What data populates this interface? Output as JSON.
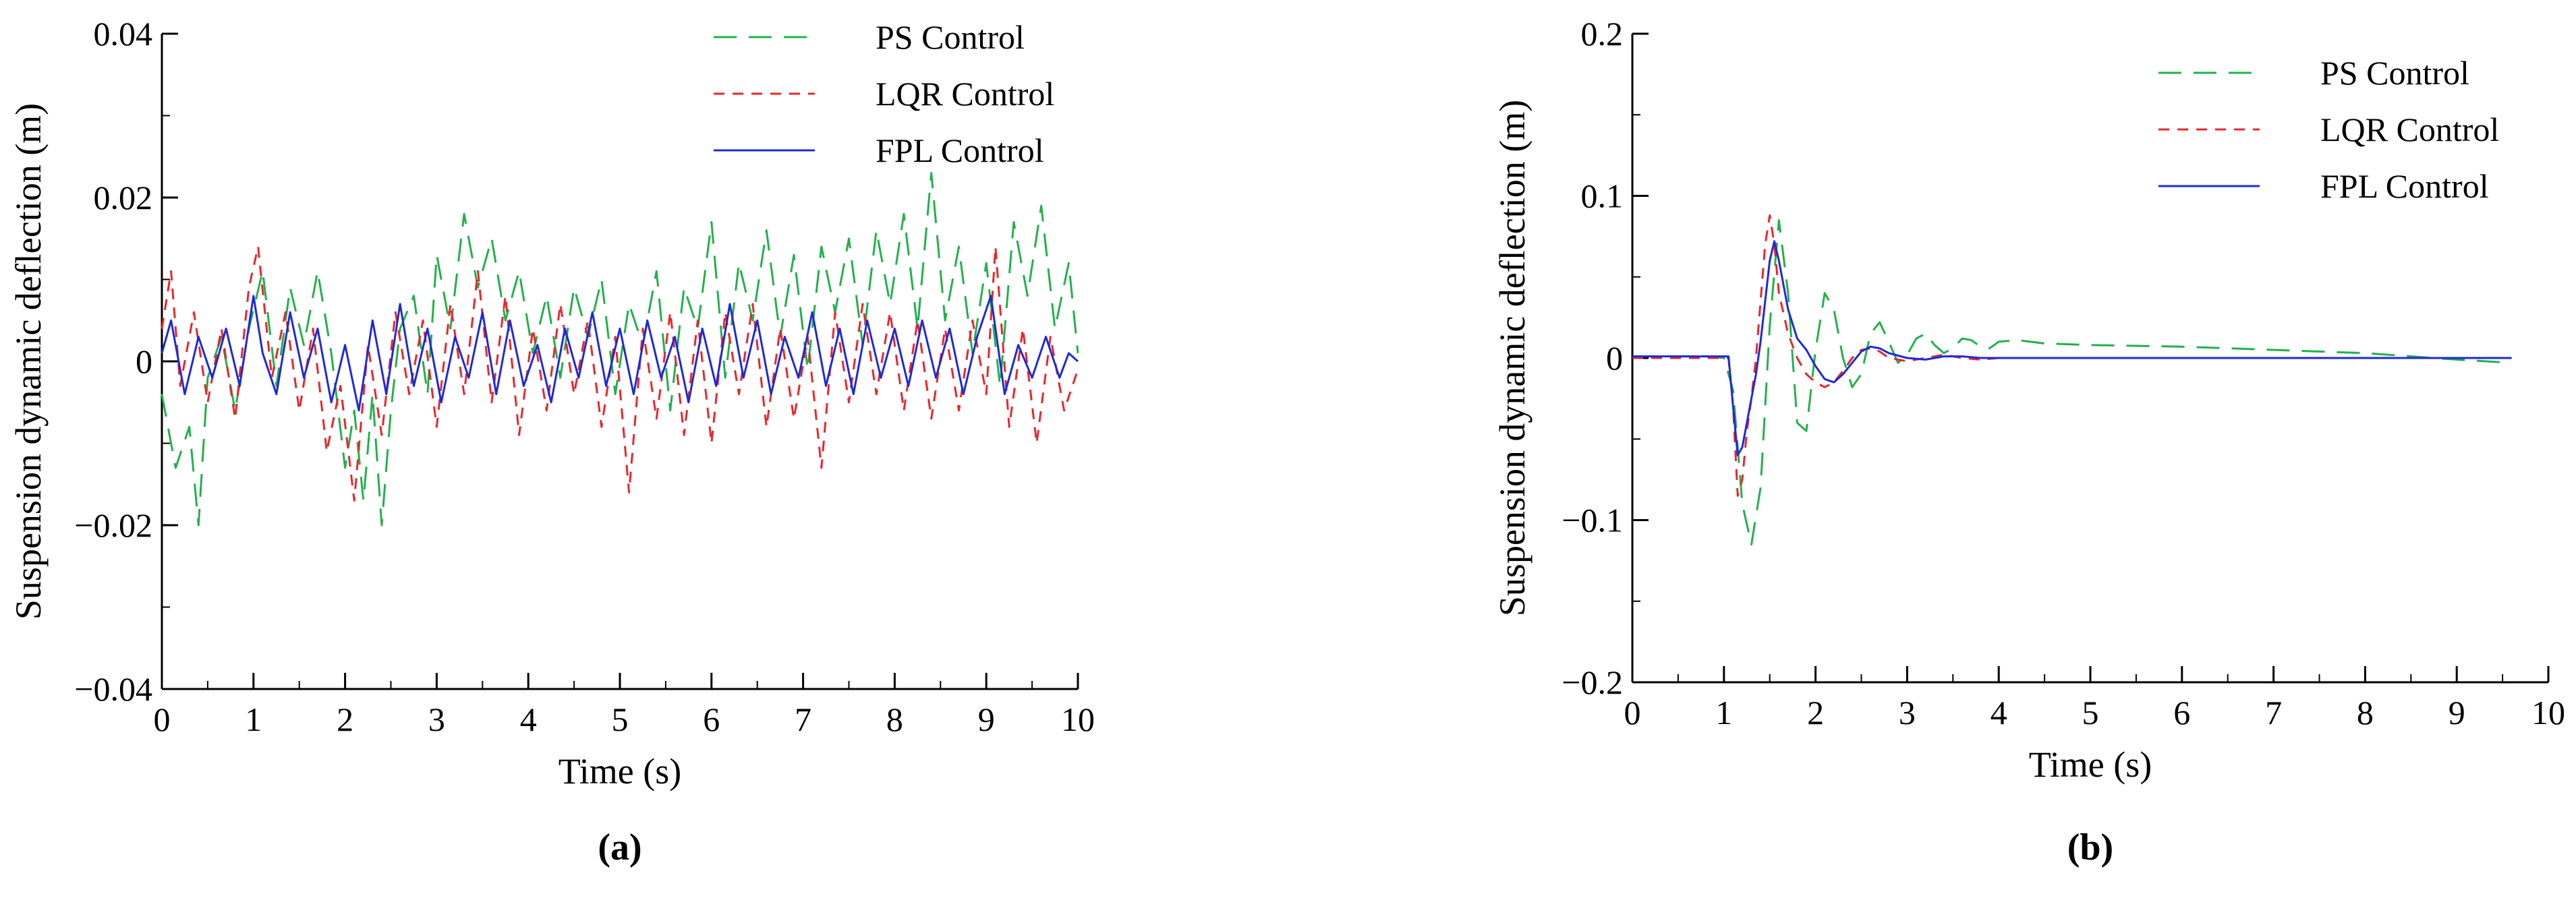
{
  "figure": {
    "panel_labels": [
      "(a)",
      "(b)"
    ]
  },
  "colors": {
    "ps": "#22b14c",
    "lqr": "#e8272d",
    "fpl": "#1f2ad6",
    "axis": "#000000"
  },
  "chart_data": [
    {
      "id": "a",
      "type": "line",
      "title": "",
      "panel_label": "(a)",
      "xlabel": "Time (s)",
      "ylabel": "Suspension dynamic deflection (m)",
      "xlim": [
        0,
        10
      ],
      "ylim": [
        -0.04,
        0.04
      ],
      "xticks": [
        0,
        1,
        2,
        3,
        4,
        5,
        6,
        7,
        8,
        9,
        10
      ],
      "xtick_labels": [
        "0",
        "1",
        "2",
        "3",
        "4",
        "5",
        "6",
        "7",
        "8",
        "9",
        "10"
      ],
      "yticks": [
        -0.04,
        -0.02,
        0,
        0.02,
        0.04
      ],
      "ytick_labels": [
        "−0.04",
        "−0.02",
        "0",
        "0.02",
        "0.04"
      ],
      "legend_position": "top-right",
      "legend": [
        "PS Control",
        "LQR Control",
        "FPL Control"
      ],
      "series": [
        {
          "name": "PS Control",
          "style": "long-dash",
          "color": "#22b14c",
          "x": [
            0,
            0.15,
            0.3,
            0.4,
            0.5,
            0.65,
            0.8,
            0.95,
            1.1,
            1.25,
            1.4,
            1.55,
            1.7,
            1.85,
            2.0,
            2.1,
            2.2,
            2.3,
            2.4,
            2.5,
            2.6,
            2.75,
            2.9,
            3.0,
            3.15,
            3.3,
            3.45,
            3.6,
            3.75,
            3.9,
            4.05,
            4.2,
            4.35,
            4.5,
            4.65,
            4.8,
            4.95,
            5.1,
            5.25,
            5.4,
            5.55,
            5.7,
            5.85,
            6.0,
            6.15,
            6.3,
            6.45,
            6.6,
            6.75,
            6.9,
            7.05,
            7.2,
            7.35,
            7.5,
            7.65,
            7.8,
            7.95,
            8.1,
            8.25,
            8.4,
            8.55,
            8.7,
            8.85,
            9.0,
            9.15,
            9.3,
            9.45,
            9.6,
            9.75,
            9.9,
            10.0
          ],
          "y": [
            -0.004,
            -0.013,
            -0.008,
            -0.02,
            -0.002,
            0.003,
            -0.006,
            0.004,
            0.011,
            -0.003,
            0.009,
            0.002,
            0.011,
            0.001,
            -0.013,
            -0.006,
            -0.017,
            -0.004,
            -0.02,
            -0.006,
            0.004,
            0.008,
            -0.004,
            0.013,
            0.004,
            0.018,
            0.009,
            0.015,
            0.005,
            0.011,
            0.001,
            0.008,
            -0.002,
            0.009,
            0.003,
            0.01,
            -0.004,
            0.007,
            0.002,
            0.011,
            -0.006,
            0.009,
            0.004,
            0.017,
            -0.002,
            0.012,
            0.005,
            0.016,
            0.003,
            0.013,
            -0.001,
            0.014,
            0.006,
            0.015,
            0.002,
            0.016,
            0.007,
            0.018,
            0.004,
            0.023,
            0.005,
            0.014,
            0.001,
            0.012,
            -0.003,
            0.017,
            0.008,
            0.019,
            0.004,
            0.012,
            0.001
          ]
        },
        {
          "name": "LQR Control",
          "style": "short-dash",
          "color": "#e8272d",
          "x": [
            0,
            0.1,
            0.2,
            0.35,
            0.5,
            0.65,
            0.8,
            0.95,
            1.05,
            1.2,
            1.35,
            1.5,
            1.65,
            1.8,
            1.95,
            2.1,
            2.25,
            2.4,
            2.55,
            2.7,
            2.85,
            3.0,
            3.15,
            3.3,
            3.45,
            3.6,
            3.75,
            3.9,
            4.05,
            4.2,
            4.35,
            4.5,
            4.65,
            4.8,
            4.95,
            5.1,
            5.25,
            5.4,
            5.55,
            5.7,
            5.85,
            6.0,
            6.15,
            6.3,
            6.45,
            6.6,
            6.75,
            6.9,
            7.05,
            7.2,
            7.35,
            7.5,
            7.65,
            7.8,
            7.95,
            8.1,
            8.25,
            8.4,
            8.55,
            8.7,
            8.85,
            9.0,
            9.1,
            9.25,
            9.4,
            9.55,
            9.7,
            9.85,
            10.0
          ],
          "y": [
            0.004,
            0.011,
            -0.003,
            0.006,
            -0.005,
            0.004,
            -0.007,
            0.009,
            0.014,
            -0.002,
            0.006,
            -0.006,
            0.004,
            -0.011,
            -0.003,
            -0.017,
            0.002,
            -0.009,
            0.006,
            -0.004,
            0.005,
            -0.008,
            0.007,
            -0.004,
            0.011,
            -0.005,
            0.008,
            -0.009,
            0.004,
            -0.006,
            0.007,
            -0.004,
            0.005,
            -0.008,
            0.003,
            -0.016,
            0.004,
            -0.007,
            0.006,
            -0.009,
            0.005,
            -0.01,
            0.006,
            -0.004,
            0.007,
            -0.008,
            0.004,
            -0.007,
            0.003,
            -0.013,
            0.006,
            -0.005,
            0.007,
            -0.004,
            0.006,
            -0.006,
            0.005,
            -0.007,
            0.004,
            -0.006,
            0.005,
            -0.004,
            0.014,
            -0.008,
            0.004,
            -0.01,
            0.003,
            -0.006,
            -0.001
          ]
        },
        {
          "name": "FPL Control",
          "style": "solid",
          "color": "#1f2ad6",
          "x": [
            0,
            0.1,
            0.25,
            0.4,
            0.55,
            0.7,
            0.85,
            1.0,
            1.1,
            1.25,
            1.4,
            1.55,
            1.7,
            1.85,
            2.0,
            2.15,
            2.3,
            2.45,
            2.6,
            2.75,
            2.9,
            3.05,
            3.2,
            3.35,
            3.5,
            3.65,
            3.8,
            3.95,
            4.1,
            4.25,
            4.4,
            4.55,
            4.7,
            4.85,
            5.0,
            5.15,
            5.3,
            5.45,
            5.6,
            5.75,
            5.9,
            6.05,
            6.2,
            6.35,
            6.5,
            6.65,
            6.8,
            6.95,
            7.1,
            7.25,
            7.4,
            7.55,
            7.7,
            7.85,
            8.0,
            8.15,
            8.3,
            8.45,
            8.6,
            8.75,
            8.9,
            9.05,
            9.2,
            9.35,
            9.5,
            9.65,
            9.8,
            9.9,
            10.0
          ],
          "y": [
            0.001,
            0.005,
            -0.004,
            0.003,
            -0.002,
            0.004,
            -0.003,
            0.008,
            0.001,
            -0.004,
            0.006,
            -0.002,
            0.004,
            -0.005,
            0.002,
            -0.006,
            0.005,
            -0.004,
            0.007,
            -0.003,
            0.004,
            -0.005,
            0.003,
            -0.002,
            0.006,
            -0.004,
            0.005,
            -0.003,
            0.002,
            -0.005,
            0.004,
            -0.002,
            0.006,
            -0.003,
            0.004,
            -0.004,
            0.005,
            -0.002,
            0.003,
            -0.005,
            0.004,
            -0.003,
            0.007,
            -0.002,
            0.005,
            -0.004,
            0.003,
            -0.002,
            0.006,
            -0.003,
            0.004,
            -0.004,
            0.005,
            -0.002,
            0.004,
            -0.003,
            0.005,
            -0.002,
            0.004,
            -0.004,
            0.003,
            0.008,
            -0.004,
            0.002,
            -0.002,
            0.003,
            -0.002,
            0.001,
            0.0
          ]
        }
      ]
    },
    {
      "id": "b",
      "type": "line",
      "title": "",
      "panel_label": "(b)",
      "xlabel": "Time (s)",
      "ylabel": "Suspension dynamic deflection (m)",
      "xlim": [
        0,
        10
      ],
      "ylim": [
        -0.2,
        0.2
      ],
      "xticks": [
        0,
        1,
        2,
        3,
        4,
        5,
        6,
        7,
        8,
        9,
        10
      ],
      "xtick_labels": [
        "0",
        "1",
        "2",
        "3",
        "4",
        "5",
        "6",
        "7",
        "8",
        "9",
        "10"
      ],
      "yticks": [
        -0.2,
        -0.1,
        0,
        0.1,
        0.2
      ],
      "ytick_labels": [
        "−0.2",
        "−0.1",
        "0",
        "0.1",
        "0.2"
      ],
      "legend_position": "top-right",
      "legend": [
        "PS Control",
        "LQR Control",
        "FPL Control"
      ],
      "series": [
        {
          "name": "PS Control",
          "style": "long-dash",
          "color": "#22b14c",
          "x": [
            0,
            0.8,
            1.0,
            1.1,
            1.2,
            1.3,
            1.4,
            1.5,
            1.6,
            1.7,
            1.8,
            1.9,
            2.0,
            2.1,
            2.2,
            2.3,
            2.4,
            2.5,
            2.6,
            2.7,
            2.8,
            2.9,
            3.0,
            3.1,
            3.2,
            3.3,
            3.4,
            3.5,
            3.6,
            3.7,
            3.8,
            3.9,
            4.0,
            4.2,
            4.5,
            5.0,
            6.0,
            7.0,
            8.0,
            9.0,
            9.6
          ],
          "y": [
            0.001,
            0.001,
            0.0,
            -0.02,
            -0.09,
            -0.115,
            -0.08,
            0.02,
            0.085,
            0.04,
            -0.04,
            -0.045,
            0.005,
            0.04,
            0.03,
            0.0,
            -0.018,
            -0.01,
            0.015,
            0.022,
            0.01,
            -0.003,
            0.002,
            0.012,
            0.015,
            0.008,
            0.003,
            0.006,
            0.012,
            0.011,
            0.007,
            0.006,
            0.01,
            0.011,
            0.009,
            0.008,
            0.007,
            0.005,
            0.003,
            -0.001,
            -0.003
          ]
        },
        {
          "name": "LQR Control",
          "style": "short-dash",
          "color": "#e8272d",
          "x": [
            0,
            1.05,
            1.1,
            1.15,
            1.2,
            1.25,
            1.3,
            1.35,
            1.4,
            1.45,
            1.5,
            1.55,
            1.6,
            1.7,
            1.8,
            1.9,
            2.0,
            2.1,
            2.2,
            2.3,
            2.4,
            2.5,
            2.6,
            2.7,
            2.8,
            3.0,
            3.2,
            3.4,
            3.6,
            3.8,
            4.0,
            4.5,
            5.0,
            6.0,
            7.0,
            8.0,
            9.0,
            9.6
          ],
          "y": [
            0.0,
            0.0,
            -0.03,
            -0.085,
            -0.075,
            -0.045,
            -0.025,
            0.0,
            0.035,
            0.07,
            0.088,
            0.07,
            0.04,
            0.015,
            0.0,
            -0.01,
            -0.015,
            -0.018,
            -0.015,
            -0.008,
            0.0,
            0.005,
            0.006,
            0.004,
            0.0,
            -0.002,
            0.0,
            0.002,
            0.0,
            -0.001,
            0.0,
            0.0,
            0.0,
            0.0,
            0.0,
            0.0,
            0.0,
            0.0
          ]
        },
        {
          "name": "FPL Control",
          "style": "solid",
          "color": "#1f2ad6",
          "x": [
            0,
            1.05,
            1.1,
            1.15,
            1.2,
            1.25,
            1.3,
            1.35,
            1.4,
            1.45,
            1.5,
            1.55,
            1.6,
            1.7,
            1.8,
            1.9,
            2.0,
            2.1,
            2.2,
            2.3,
            2.4,
            2.5,
            2.6,
            2.7,
            2.8,
            3.0,
            3.2,
            3.4,
            3.6,
            3.8,
            4.0,
            4.5,
            5.0,
            6.0,
            7.0,
            8.0,
            9.0,
            9.6
          ],
          "y": [
            0.001,
            0.001,
            -0.03,
            -0.06,
            -0.055,
            -0.04,
            -0.025,
            -0.01,
            0.01,
            0.035,
            0.06,
            0.072,
            0.06,
            0.03,
            0.012,
            0.005,
            -0.005,
            -0.013,
            -0.015,
            -0.01,
            -0.003,
            0.004,
            0.007,
            0.006,
            0.003,
            0.0,
            -0.001,
            0.001,
            0.001,
            0.0,
            0.0,
            0.0,
            0.0,
            0.0,
            0.0,
            0.0,
            0.0,
            0.0
          ]
        }
      ]
    }
  ]
}
